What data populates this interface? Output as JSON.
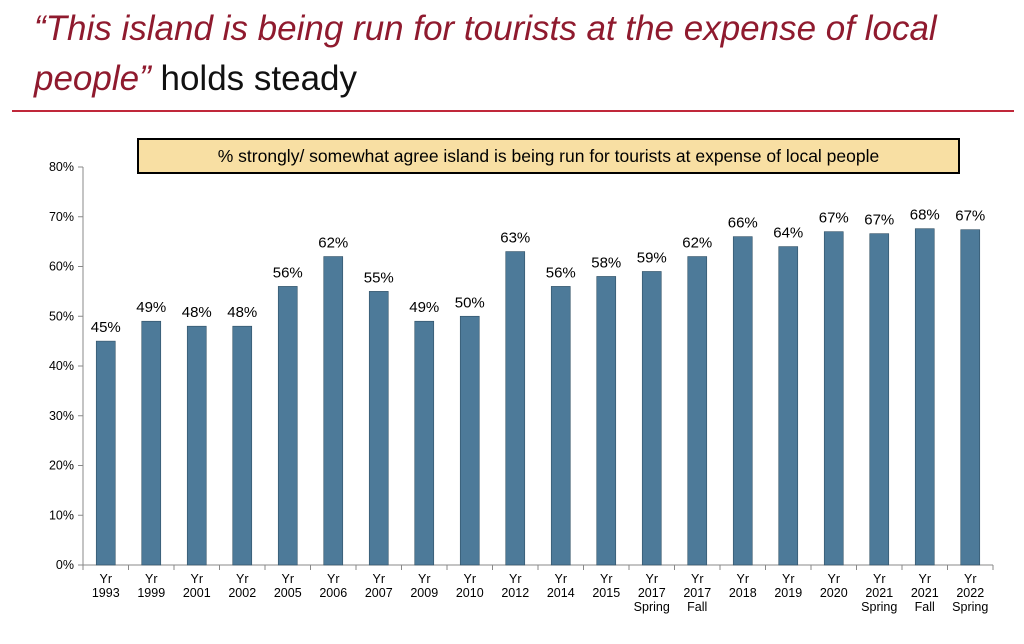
{
  "header": {
    "quote": "“This island is being run for tourists at the expense of local people”",
    "suffix": " holds steady"
  },
  "colors": {
    "bar": "#4d7a99",
    "title_quote": "#8f1a2e",
    "rule": "#c0283a",
    "legend_bg": "#f8dfa3"
  },
  "chart_data": {
    "type": "bar",
    "title": "% strongly/ somewhat agree island is being run for tourists at expense of local people",
    "categories": [
      [
        "Yr",
        "1993"
      ],
      [
        "Yr",
        "1999"
      ],
      [
        "Yr",
        "2001"
      ],
      [
        "Yr",
        "2002"
      ],
      [
        "Yr",
        "2005"
      ],
      [
        "Yr",
        "2006"
      ],
      [
        "Yr",
        "2007"
      ],
      [
        "Yr",
        "2009"
      ],
      [
        "Yr",
        "2010"
      ],
      [
        "Yr",
        "2012"
      ],
      [
        "Yr",
        "2014"
      ],
      [
        "Yr",
        "2015"
      ],
      [
        "Yr",
        "2017",
        "Spring"
      ],
      [
        "Yr",
        "2017",
        "Fall"
      ],
      [
        "Yr",
        "2018"
      ],
      [
        "Yr",
        "2019"
      ],
      [
        "Yr",
        "2020"
      ],
      [
        "Yr",
        "2021",
        "Spring"
      ],
      [
        "Yr",
        "2021",
        "Fall"
      ],
      [
        "Yr",
        "2022",
        "Spring"
      ]
    ],
    "values": [
      45,
      49,
      48,
      48,
      56,
      62,
      55,
      49,
      50,
      63,
      56,
      58,
      59,
      62,
      66,
      64,
      67,
      66.6,
      67.6,
      67.4
    ],
    "value_labels": [
      "45%",
      "49%",
      "48%",
      "48%",
      "56%",
      "62%",
      "55%",
      "49%",
      "50%",
      "63%",
      "56%",
      "58%",
      "59%",
      "62%",
      "66%",
      "64%",
      "67%",
      "67%",
      "68%",
      "67%"
    ],
    "yticks": [
      0,
      10,
      20,
      30,
      40,
      50,
      60,
      70,
      80
    ],
    "ytick_labels": [
      "0%",
      "10%",
      "20%",
      "30%",
      "40%",
      "50%",
      "60%",
      "70%",
      "80%"
    ],
    "ylim": [
      0,
      80
    ],
    "xlabel": "",
    "ylabel": "",
    "grid": false
  }
}
